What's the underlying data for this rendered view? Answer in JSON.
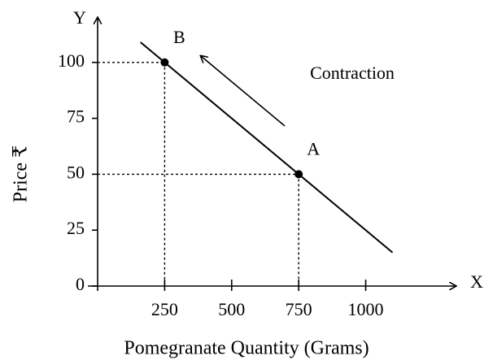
{
  "chart_data": {
    "type": "line",
    "x_label": "Pomegranate Quantity (Grams)",
    "y_label": "Price ₹",
    "x_axis_name": "X",
    "y_axis_name": "Y",
    "annotation": "Contraction",
    "xlim": [
      0,
      1320
    ],
    "ylim": [
      0,
      117
    ],
    "xticks": [
      250,
      500,
      750,
      1000
    ],
    "yticks": [
      0,
      25,
      50,
      75,
      100
    ],
    "series": [
      {
        "x": [
          160,
          1100
        ],
        "values": [
          109,
          15
        ],
        "color": "#000000"
      }
    ],
    "points": [
      {
        "label": "A",
        "x": 750,
        "y": 50
      },
      {
        "label": "B",
        "x": 250,
        "y": 100
      }
    ]
  }
}
